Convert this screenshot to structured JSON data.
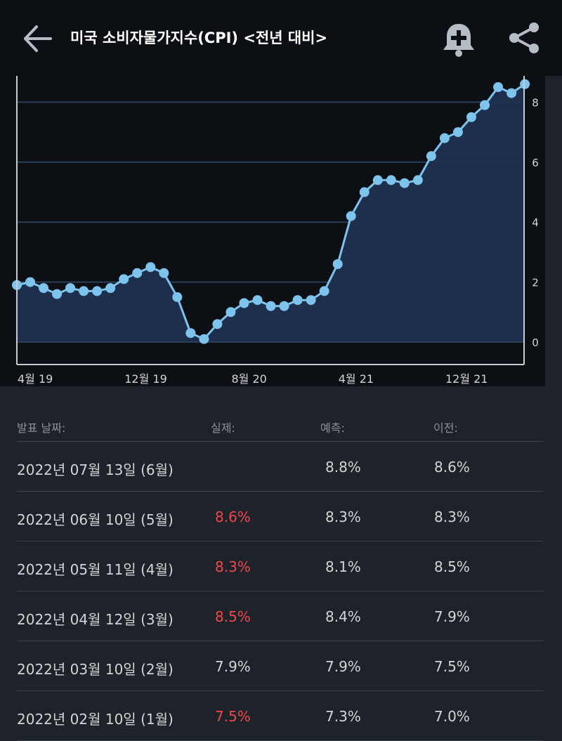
{
  "header": {
    "title": "미국 소비자물가지수(CPI) <전년 대비>",
    "back_icon": "arrow-left-icon",
    "alert_icon": "bell-plus-icon",
    "share_icon": "share-icon"
  },
  "colors": {
    "line": "#7ec3ec",
    "fill": "#1f3150",
    "negative": "#f0464f"
  },
  "chart_data": {
    "type": "area",
    "title": "",
    "x": [
      "2019-04",
      "2019-05",
      "2019-06",
      "2019-07",
      "2019-08",
      "2019-09",
      "2019-10",
      "2019-11",
      "2019-12",
      "2020-01",
      "2020-02",
      "2020-03",
      "2020-04",
      "2020-05",
      "2020-06",
      "2020-07",
      "2020-08",
      "2020-09",
      "2020-10",
      "2020-11",
      "2020-12",
      "2021-01",
      "2021-02",
      "2021-03",
      "2021-04",
      "2021-05",
      "2021-06",
      "2021-07",
      "2021-08",
      "2021-09",
      "2021-10",
      "2021-11",
      "2021-12",
      "2022-01",
      "2022-02",
      "2022-03",
      "2022-04",
      "2022-05"
    ],
    "values": [
      2.0,
      1.8,
      1.6,
      1.8,
      1.7,
      1.7,
      1.8,
      2.1,
      2.3,
      2.5,
      2.3,
      1.5,
      0.3,
      0.1,
      0.6,
      1.0,
      1.3,
      1.4,
      1.2,
      1.2,
      1.4,
      1.4,
      1.7,
      2.6,
      4.2,
      5.0,
      5.4,
      5.4,
      5.3,
      5.4,
      6.2,
      6.8,
      7.0,
      7.5,
      7.9,
      8.5,
      8.3,
      8.6
    ],
    "ylim": [
      -0.75,
      8.9
    ],
    "yticks": [
      "0",
      "2",
      "4",
      "6",
      "8"
    ],
    "xticks": [
      {
        "label": "4월 19",
        "index": 0
      },
      {
        "label": "12월 19",
        "index": 8
      },
      {
        "label": "8월 20",
        "index": 16
      },
      {
        "label": "4월 21",
        "index": 24
      },
      {
        "label": "12월 21",
        "index": 32
      }
    ],
    "grid": true,
    "leading_value": 1.9
  },
  "table": {
    "headers": {
      "date": "발표 날짜:",
      "actual": "실제:",
      "forecast": "예측:",
      "previous": "이전:"
    },
    "rows": [
      {
        "date": "2022년 07월 13일 (6월)",
        "actual": "",
        "actual_negative": false,
        "forecast": "8.8%",
        "previous": "8.6%"
      },
      {
        "date": "2022년 06월 10일 (5월)",
        "actual": "8.6%",
        "actual_negative": true,
        "forecast": "8.3%",
        "previous": "8.3%"
      },
      {
        "date": "2022년 05월 11일 (4월)",
        "actual": "8.3%",
        "actual_negative": true,
        "forecast": "8.1%",
        "previous": "8.5%"
      },
      {
        "date": "2022년 04월 12일 (3월)",
        "actual": "8.5%",
        "actual_negative": true,
        "forecast": "8.4%",
        "previous": "7.9%"
      },
      {
        "date": "2022년 03월 10일 (2월)",
        "actual": "7.9%",
        "actual_negative": false,
        "forecast": "7.9%",
        "previous": "7.5%"
      },
      {
        "date": "2022년 02월 10일 (1월)",
        "actual": "7.5%",
        "actual_negative": true,
        "forecast": "7.3%",
        "previous": "7.0%"
      }
    ]
  }
}
